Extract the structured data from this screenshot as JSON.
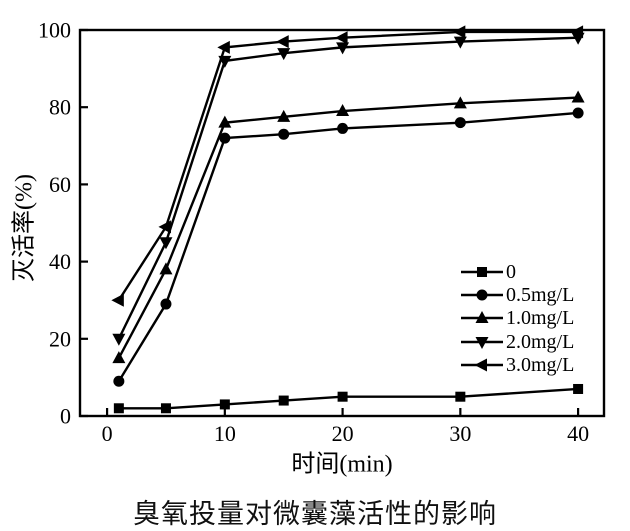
{
  "chart_data": {
    "type": "line",
    "x": [
      1,
      5,
      10,
      15,
      20,
      30,
      40
    ],
    "series": [
      {
        "name": "0",
        "marker": "square",
        "values": [
          2,
          2,
          3,
          4,
          5,
          5,
          7
        ]
      },
      {
        "name": "0.5mg/L",
        "marker": "circle",
        "values": [
          9,
          29,
          72,
          73,
          74.5,
          76,
          78.5
        ]
      },
      {
        "name": "1.0mg/L",
        "marker": "triangle-up",
        "values": [
          15,
          38,
          76,
          77.5,
          79,
          81,
          82.5
        ]
      },
      {
        "name": "2.0mg/L",
        "marker": "triangle-down",
        "values": [
          20,
          45,
          92,
          94,
          95.5,
          97,
          98
        ]
      },
      {
        "name": "3.0mg/L",
        "marker": "triangle-left",
        "values": [
          30,
          49,
          95.5,
          97,
          98,
          99.5,
          99.5
        ]
      }
    ],
    "title": "臭氧投量对微囊藻活性的影响",
    "xlabel": "时间(min)",
    "ylabel": "灭活率(%)",
    "xticks": [
      0,
      10,
      20,
      30,
      40
    ],
    "yticks": [
      0,
      20,
      40,
      60,
      80,
      100
    ],
    "xlim": [
      -2.3,
      42.2
    ],
    "ylim": [
      0,
      100
    ],
    "grid": false,
    "legend_position": "inside-bottom-right",
    "line_color": "#000000",
    "background_color": "#ffffff"
  }
}
